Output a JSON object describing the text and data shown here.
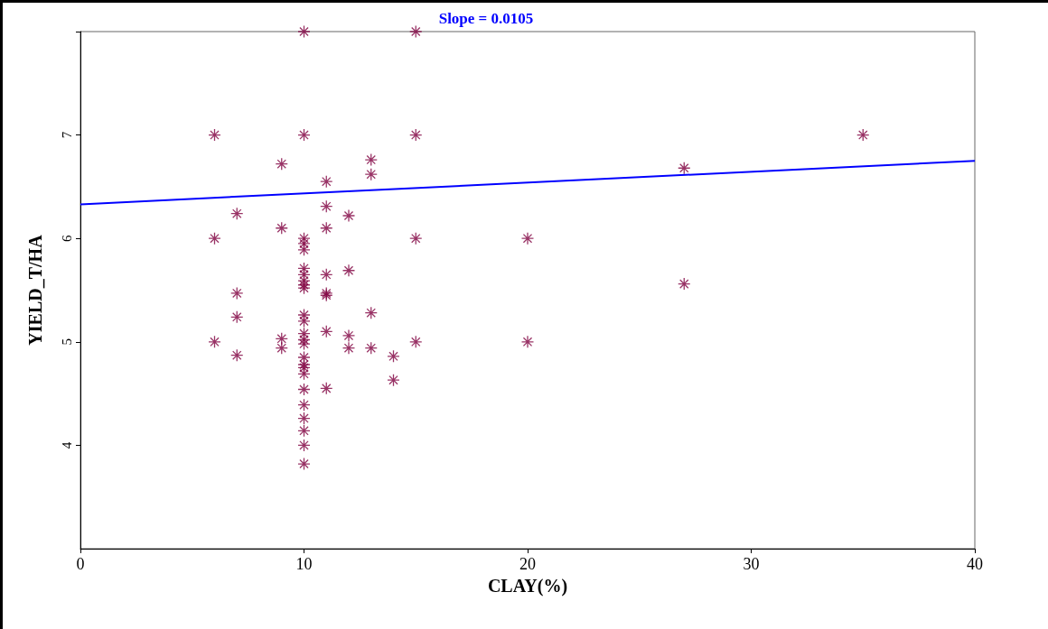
{
  "chart_data": {
    "type": "scatter",
    "title": "Slope = 0.0105",
    "xlabel": "CLAY(%)",
    "ylabel": "YIELD_T/HA",
    "xlim": [
      0,
      40
    ],
    "xticks": [
      0,
      10,
      20,
      30,
      40
    ],
    "ylim": [
      3,
      8
    ],
    "yticks": [
      4,
      5,
      6,
      7,
      {
        "value": 8,
        "label": null
      }
    ],
    "grid": false,
    "marker": "cross",
    "series": [
      {
        "color": "#800040",
        "x": [
          6,
          6,
          6,
          7,
          7,
          7,
          7,
          9,
          9,
          9,
          9,
          10,
          10,
          10,
          10,
          10,
          10,
          10,
          10,
          10,
          10,
          10,
          10,
          10,
          10,
          10,
          10,
          10,
          10,
          10,
          10,
          10,
          10,
          10,
          10,
          10,
          11,
          11,
          11,
          11,
          11,
          11,
          11,
          11,
          12,
          12,
          12,
          12,
          13,
          13,
          13,
          13,
          14,
          14,
          15,
          15,
          15,
          15,
          20,
          20,
          27,
          27,
          35
        ],
        "values": [
          7.0,
          6.0,
          5.0,
          6.24,
          5.47,
          5.24,
          4.87,
          6.72,
          6.1,
          5.03,
          4.94,
          8.0,
          7.0,
          6.0,
          5.95,
          5.89,
          5.71,
          5.65,
          5.59,
          5.55,
          5.52,
          5.26,
          5.2,
          5.08,
          5.02,
          4.98,
          4.85,
          4.78,
          4.75,
          4.69,
          4.54,
          4.39,
          4.26,
          4.14,
          4.0,
          3.82,
          6.55,
          6.31,
          6.1,
          5.65,
          5.47,
          5.45,
          5.1,
          4.55,
          6.22,
          5.69,
          5.06,
          4.94,
          6.76,
          6.62,
          5.28,
          4.94,
          4.86,
          4.63,
          8.0,
          7.0,
          6.0,
          5.0,
          6.0,
          5.0,
          6.68,
          5.56,
          7.0
        ]
      },
      {
        "type": "line",
        "color": "#0000ff",
        "marker": "none",
        "line_style": "solid",
        "x": [
          0,
          40
        ],
        "values": [
          6.33,
          6.75
        ]
      }
    ]
  }
}
